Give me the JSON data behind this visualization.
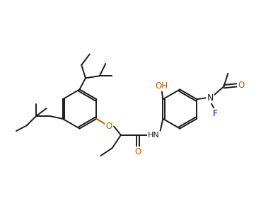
{
  "background": "#ffffff",
  "bond_color": "#1a1a1a",
  "O_color": "#b85c00",
  "N_color": "#1a1a1a",
  "F_color": "#0000bb",
  "figsize": [
    3.86,
    3.08
  ],
  "dpi": 100,
  "xlim": [
    0,
    9.5
  ],
  "ylim": [
    0.5,
    8.5
  ]
}
